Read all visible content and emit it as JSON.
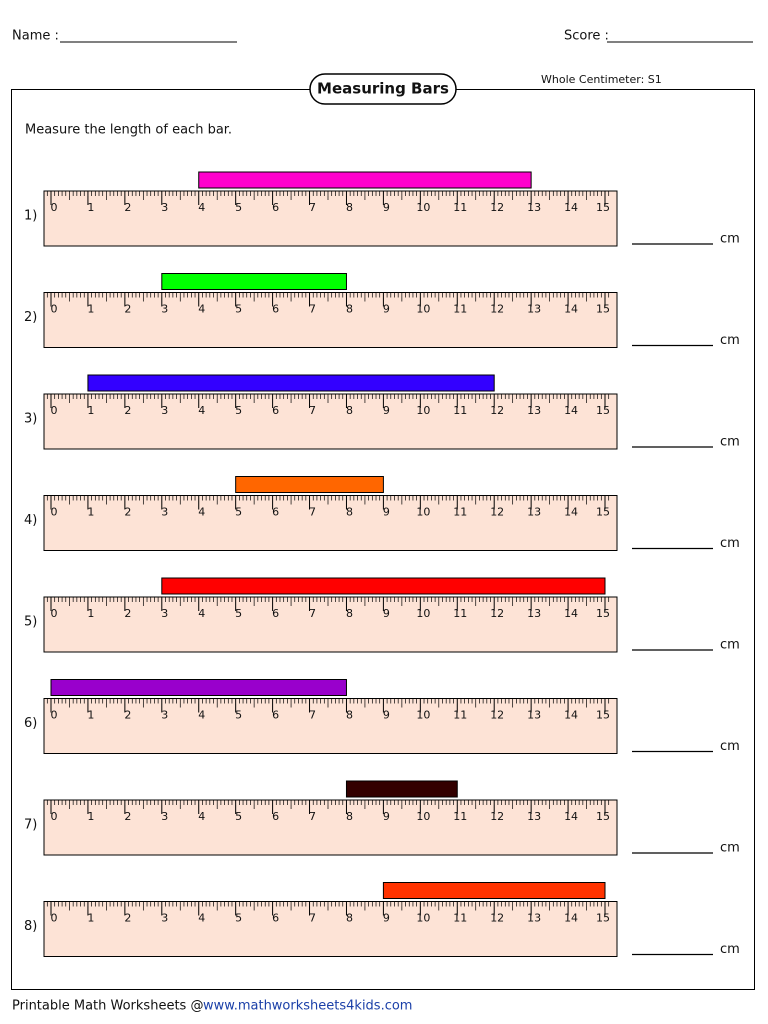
{
  "header": {
    "name_label": "Name :",
    "score_label": "Score :",
    "title": "Measuring Bars",
    "level": "Whole Centimeter: S1",
    "instruction": "Measure the length of each bar."
  },
  "ruler": {
    "labels": [
      0,
      1,
      2,
      3,
      4,
      5,
      6,
      7,
      8,
      9,
      10,
      11,
      12,
      13,
      14,
      15
    ],
    "unit": "cm"
  },
  "problems": [
    {
      "number": "1)",
      "start": 4,
      "end": 13,
      "color": "#ff00cc"
    },
    {
      "number": "2)",
      "start": 3,
      "end": 8,
      "color": "#00ff00"
    },
    {
      "number": "3)",
      "start": 1,
      "end": 12,
      "color": "#3300ff"
    },
    {
      "number": "4)",
      "start": 5,
      "end": 9,
      "color": "#ff6600"
    },
    {
      "number": "5)",
      "start": 3,
      "end": 15,
      "color": "#ff0000"
    },
    {
      "number": "6)",
      "start": 0,
      "end": 8,
      "color": "#9900cc"
    },
    {
      "number": "7)",
      "start": 8,
      "end": 11,
      "color": "#330000"
    },
    {
      "number": "8)",
      "start": 9,
      "end": 15,
      "color": "#ff3300"
    }
  ],
  "footer": {
    "text": "Printable Math Worksheets @",
    "link": "www.mathworksheets4kids.com"
  }
}
